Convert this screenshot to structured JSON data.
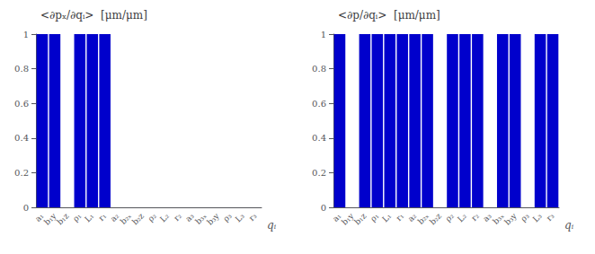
{
  "chart_data": [
    {
      "type": "bar",
      "title": "<∂pₓ/∂qᵢ>  [μm/μm]",
      "x_label": "qᵢ",
      "categories": [
        "a₁",
        "b₁y",
        "b₁z",
        "ρ₁",
        "L₁",
        "r₁",
        "a₂",
        "b₂ₓ",
        "b₂z",
        "ρ₂",
        "L₂",
        "r₂",
        "a₃",
        "b₃ₓ",
        "b₃y",
        "ρ₃",
        "L₃",
        "r₃"
      ],
      "values": [
        1,
        1,
        0,
        1,
        1,
        1,
        0,
        0,
        0,
        0,
        0,
        0,
        0,
        0,
        0,
        0,
        0,
        0
      ],
      "color": "#0000CC",
      "ylim": [
        0,
        1
      ],
      "yticks": [
        0,
        0.2,
        0.4,
        0.6,
        0.8,
        1
      ],
      "grid": false
    },
    {
      "type": "bar",
      "title": "<∂p/∂qᵢ>  [μm/μm]",
      "x_label": "qᵢ",
      "categories": [
        "a₁",
        "b₁y",
        "b₁z",
        "ρ₁",
        "L₁",
        "r₁",
        "a₂",
        "b₂ₓ",
        "b₂z",
        "ρ₂",
        "L₂",
        "r₂",
        "a₃",
        "b₃ₓ",
        "b₃y",
        "ρ₃",
        "L₃",
        "r₃"
      ],
      "values": [
        1,
        0,
        1,
        1,
        1,
        1,
        1,
        1,
        0,
        1,
        1,
        1,
        0,
        1,
        1,
        0,
        1,
        1
      ],
      "color": "#0000CC",
      "ylim": [
        0,
        1
      ],
      "yticks": [
        0,
        0.2,
        0.4,
        0.6,
        0.8,
        1
      ],
      "grid": false
    }
  ]
}
